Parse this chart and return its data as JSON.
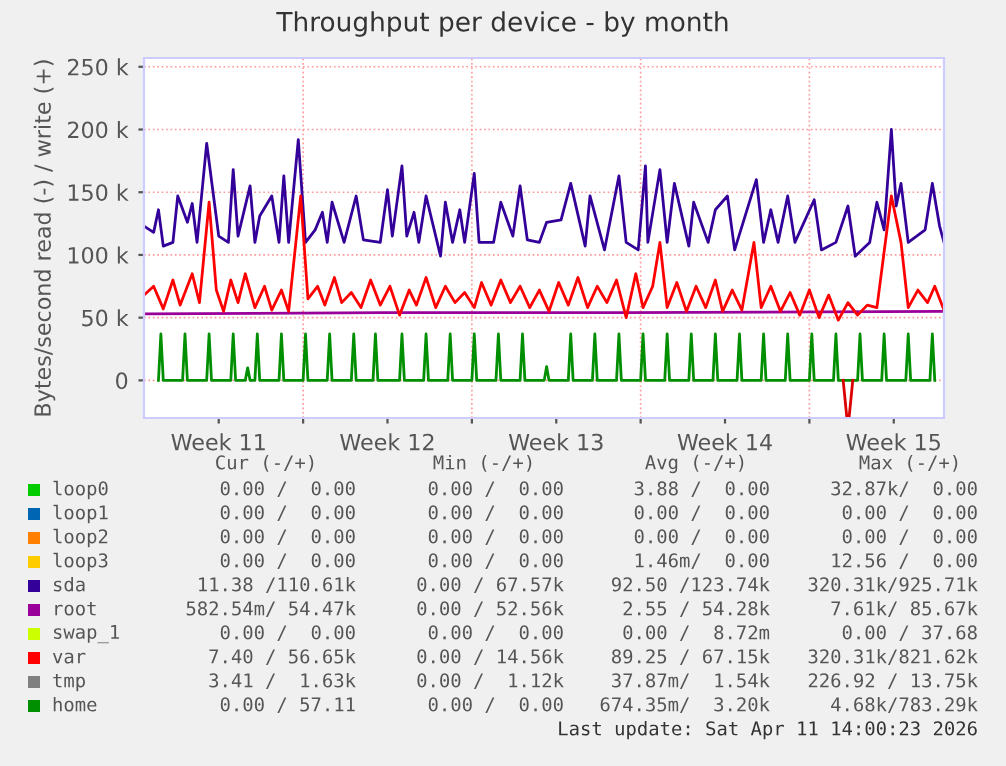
{
  "chart_data": {
    "type": "line",
    "title": "Throughput per device - by month",
    "ylabel": "Bytes/second read (-) / write (+)",
    "xlim": [
      "2026-03-09T09:36",
      "2026-04-11T14:00"
    ],
    "ylim": [
      -30,
      257
    ],
    "xticks": [
      {
        "value": "2026-03-12T12:00",
        "label": "Week 11"
      },
      {
        "value": "2026-03-16T00:00",
        "label": null
      },
      {
        "value": "2026-03-19T12:00",
        "label": "Week 12"
      },
      {
        "value": "2026-03-23T00:00",
        "label": null
      },
      {
        "value": "2026-03-26T12:00",
        "label": "Week 13"
      },
      {
        "value": "2026-03-30T00:00",
        "label": null
      },
      {
        "value": "2026-04-02T12:00",
        "label": "Week 14"
      },
      {
        "value": "2026-04-06T00:00",
        "label": null
      },
      {
        "value": "2026-04-09T12:00",
        "label": "Week 15"
      }
    ],
    "yticks": [
      0,
      {
        "value": 50,
        "label": "50 k"
      },
      {
        "value": 100,
        "label": "100 k"
      },
      {
        "value": 150,
        "label": "150 k"
      },
      {
        "value": 200,
        "label": "200 k"
      },
      {
        "value": 250,
        "label": "250 k"
      }
    ],
    "grid": true,
    "legend": "bottom",
    "marker": "none",
    "line_style": "solid",
    "series": [
      {
        "name": "loop0",
        "color": "#00cc00"
      },
      {
        "name": "loop1",
        "color": "#0066b3"
      },
      {
        "name": "loop2",
        "color": "#ff8000"
      },
      {
        "name": "loop3",
        "color": "#ffcc00"
      },
      {
        "name": "sda",
        "color": "#330099",
        "x": [
          "2026-03-09T09:36",
          "2026-03-09T19:12",
          "2026-03-10T00:00",
          "2026-03-10T04:48",
          "2026-03-10T14:24",
          "2026-03-10T19:12",
          "2026-03-11T04:48",
          "2026-03-11T09:36",
          "2026-03-11T14:24",
          "2026-03-12T00:00",
          "2026-03-12T12:00",
          "2026-03-12T21:36",
          "2026-03-13T02:24",
          "2026-03-13T07:12",
          "2026-03-13T19:12",
          "2026-03-14T00:00",
          "2026-03-14T04:48",
          "2026-03-14T16:48",
          "2026-03-15T00:00",
          "2026-03-15T04:48",
          "2026-03-15T09:36",
          "2026-03-15T19:12",
          "2026-03-16T02:24",
          "2026-03-16T12:00",
          "2026-03-16T19:12",
          "2026-03-17T00:00",
          "2026-03-17T04:48",
          "2026-03-17T16:48",
          "2026-03-18T04:48",
          "2026-03-18T12:00",
          "2026-03-19T04:48",
          "2026-03-19T12:00",
          "2026-03-19T16:48",
          "2026-03-20T02:24",
          "2026-03-20T07:12",
          "2026-03-20T14:24",
          "2026-03-20T19:12",
          "2026-03-21T02:24",
          "2026-03-21T16:48",
          "2026-03-21T21:36",
          "2026-03-22T04:48",
          "2026-03-22T12:00",
          "2026-03-22T16:48",
          "2026-03-23T02:24",
          "2026-03-23T07:12",
          "2026-03-23T21:36",
          "2026-03-24T04:48",
          "2026-03-24T16:48",
          "2026-03-25T00:00",
          "2026-03-25T07:12",
          "2026-03-25T19:12",
          "2026-03-26T02:24",
          "2026-03-26T16:48",
          "2026-03-27T02:24",
          "2026-03-27T16:48",
          "2026-03-27T21:36",
          "2026-03-28T12:00",
          "2026-03-29T02:24",
          "2026-03-29T09:36",
          "2026-03-29T21:36",
          "2026-03-30T04:48",
          "2026-03-30T07:12",
          "2026-03-30T19:12",
          "2026-03-31T02:24",
          "2026-03-31T09:36",
          "2026-04-01T00:00",
          "2026-04-01T04:48",
          "2026-04-01T19:12",
          "2026-04-02T02:24",
          "2026-04-02T14:24",
          "2026-04-02T21:36",
          "2026-04-03T19:12",
          "2026-04-04T02:24",
          "2026-04-04T09:36",
          "2026-04-04T16:48",
          "2026-04-05T02:24",
          "2026-04-05T09:36",
          "2026-04-06T04:48",
          "2026-04-06T12:00",
          "2026-04-07T02:24",
          "2026-04-07T14:24",
          "2026-04-07T21:36",
          "2026-04-08T12:00",
          "2026-04-08T19:12",
          "2026-04-09T02:24",
          "2026-04-09T09:36",
          "2026-04-09T14:24",
          "2026-04-09T19:12",
          "2026-04-10T02:24",
          "2026-04-10T19:12",
          "2026-04-11T02:24",
          "2026-04-11T09:36",
          "2026-04-11T14:00"
        ],
        "values": [
          123,
          118,
          136,
          107,
          110,
          147,
          126,
          141,
          110,
          189,
          115,
          110,
          168,
          115,
          155,
          110,
          131,
          147,
          110,
          163,
          110,
          192,
          110,
          120,
          134,
          110,
          142,
          110,
          147,
          112,
          110,
          152,
          115,
          171,
          115,
          134,
          110,
          147,
          99,
          142,
          110,
          136,
          110,
          165,
          110,
          110,
          142,
          115,
          155,
          112,
          110,
          126,
          128,
          157,
          107,
          147,
          104,
          163,
          110,
          104,
          171,
          110,
          168,
          110,
          157,
          107,
          142,
          110,
          136,
          147,
          104,
          160,
          110,
          136,
          110,
          147,
          110,
          144,
          104,
          110,
          139,
          99,
          110,
          142,
          120,
          200,
          139,
          157,
          110,
          120,
          157,
          123,
          110
        ]
      },
      {
        "name": "root",
        "color": "#990099",
        "x": [
          "2026-03-09T09:36",
          "2026-03-19T09:36",
          "2026-03-29T09:36",
          "2026-04-11T14:00"
        ],
        "values": [
          53,
          54,
          54,
          55
        ]
      },
      {
        "name": "swap_1",
        "color": "#ccff00"
      },
      {
        "name": "var",
        "color": "#ff0000",
        "x": [
          "2026-03-09T09:36",
          "2026-03-09T19:12",
          "2026-03-10T04:48",
          "2026-03-10T14:24",
          "2026-03-10T21:36",
          "2026-03-11T09:36",
          "2026-03-11T16:48",
          "2026-03-12T02:24",
          "2026-03-12T09:36",
          "2026-03-12T16:48",
          "2026-03-13T00:00",
          "2026-03-13T07:12",
          "2026-03-13T14:24",
          "2026-03-14T00:00",
          "2026-03-14T09:36",
          "2026-03-14T16:48",
          "2026-03-15T02:24",
          "2026-03-15T09:36",
          "2026-03-15T21:36",
          "2026-03-16T04:48",
          "2026-03-16T14:24",
          "2026-03-16T21:36",
          "2026-03-17T07:12",
          "2026-03-17T14:24",
          "2026-03-18T00:00",
          "2026-03-18T09:36",
          "2026-03-18T19:12",
          "2026-03-19T04:48",
          "2026-03-19T14:24",
          "2026-03-20T00:00",
          "2026-03-20T09:36",
          "2026-03-20T16:48",
          "2026-03-21T02:24",
          "2026-03-21T12:00",
          "2026-03-21T21:36",
          "2026-03-22T07:12",
          "2026-03-22T16:48",
          "2026-03-23T02:24",
          "2026-03-23T09:36",
          "2026-03-23T19:12",
          "2026-03-24T04:48",
          "2026-03-24T14:24",
          "2026-03-25T00:00",
          "2026-03-25T09:36",
          "2026-03-25T19:12",
          "2026-03-26T04:48",
          "2026-03-26T14:24",
          "2026-03-27T00:00",
          "2026-03-27T09:36",
          "2026-03-27T19:12",
          "2026-03-28T04:48",
          "2026-03-28T14:24",
          "2026-03-29T00:00",
          "2026-03-29T09:36",
          "2026-03-29T19:12",
          "2026-03-30T02:24",
          "2026-03-30T12:00",
          "2026-03-30T19:12",
          "2026-03-31T02:24",
          "2026-03-31T12:00",
          "2026-03-31T21:36",
          "2026-04-01T07:12",
          "2026-04-01T16:48",
          "2026-04-02T02:24",
          "2026-04-02T09:36",
          "2026-04-02T19:12",
          "2026-04-03T04:48",
          "2026-04-03T16:48",
          "2026-04-04T00:00",
          "2026-04-04T09:36",
          "2026-04-04T19:12",
          "2026-04-05T04:48",
          "2026-04-05T14:24",
          "2026-04-06T00:00",
          "2026-04-06T09:36",
          "2026-04-06T19:12",
          "2026-04-07T04:48",
          "2026-04-07T14:24",
          "2026-04-08T00:00",
          "2026-04-08T09:36",
          "2026-04-08T19:12",
          "2026-04-09T09:36",
          "2026-04-09T19:12",
          "2026-04-10T02:24",
          "2026-04-10T12:00",
          "2026-04-10T21:36",
          "2026-04-11T04:48",
          "2026-04-11T14:00"
        ],
        "values": [
          68,
          75,
          57,
          80,
          60,
          85,
          62,
          142,
          72,
          55,
          80,
          62,
          85,
          58,
          75,
          56,
          72,
          55,
          147,
          65,
          75,
          60,
          82,
          62,
          70,
          58,
          80,
          60,
          75,
          52,
          72,
          60,
          82,
          58,
          75,
          62,
          70,
          58,
          78,
          60,
          80,
          62,
          75,
          58,
          72,
          55,
          78,
          60,
          82,
          58,
          75,
          62,
          80,
          50,
          85,
          58,
          75,
          110,
          58,
          78,
          55,
          75,
          58,
          80,
          55,
          72,
          56,
          110,
          58,
          75,
          55,
          70,
          52,
          72,
          50,
          68,
          48,
          62,
          52,
          60,
          58,
          147,
          110,
          58,
          72,
          62,
          75,
          56
        ]
      },
      {
        "name": "tmp",
        "color": "#808080"
      },
      {
        "name": "home",
        "color": "#008f00",
        "x": [
          "2026-03-10T00:00",
          "2026-03-10T02:24",
          "2026-03-10T04:48",
          "2026-03-11T00:00",
          "2026-03-11T02:24",
          "2026-03-11T04:48",
          "2026-03-12T00:00",
          "2026-03-12T02:24",
          "2026-03-12T04:48",
          "2026-03-13T00:00",
          "2026-03-13T02:24",
          "2026-03-13T04:48",
          "2026-03-13T14:24",
          "2026-03-13T16:48",
          "2026-03-13T19:12",
          "2026-03-14T00:00",
          "2026-03-14T02:24",
          "2026-03-14T04:48",
          "2026-03-15T00:00",
          "2026-03-15T02:24",
          "2026-03-15T04:48",
          "2026-03-16T00:00",
          "2026-03-16T02:24",
          "2026-03-16T04:48",
          "2026-03-17T00:00",
          "2026-03-17T02:24",
          "2026-03-17T04:48",
          "2026-03-18T00:00",
          "2026-03-18T02:24",
          "2026-03-18T04:48",
          "2026-03-18T21:36",
          "2026-03-19T00:00",
          "2026-03-19T02:24",
          "2026-03-20T00:00",
          "2026-03-20T02:24",
          "2026-03-20T04:48",
          "2026-03-21T00:00",
          "2026-03-21T02:24",
          "2026-03-21T04:48",
          "2026-03-22T00:00",
          "2026-03-22T02:24",
          "2026-03-22T04:48",
          "2026-03-23T00:00",
          "2026-03-23T02:24",
          "2026-03-23T04:48",
          "2026-03-24T00:00",
          "2026-03-24T02:24",
          "2026-03-24T04:48",
          "2026-03-25T00:00",
          "2026-03-25T02:24",
          "2026-03-25T04:48",
          "2026-03-26T00:00",
          "2026-03-26T02:24",
          "2026-03-26T04:48",
          "2026-03-27T00:00",
          "2026-03-27T02:24",
          "2026-03-27T04:48",
          "2026-03-28T00:00",
          "2026-03-28T02:24",
          "2026-03-28T04:48",
          "2026-03-29T00:00",
          "2026-03-29T02:24",
          "2026-03-29T04:48",
          "2026-03-30T00:00",
          "2026-03-30T02:24",
          "2026-03-30T04:48",
          "2026-03-31T00:00",
          "2026-03-31T02:24",
          "2026-03-31T04:48",
          "2026-04-01T00:00",
          "2026-04-01T02:24",
          "2026-04-01T04:48",
          "2026-04-02T00:00",
          "2026-04-02T02:24",
          "2026-04-02T04:48",
          "2026-04-03T00:00",
          "2026-04-03T02:24",
          "2026-04-03T04:48",
          "2026-04-04T00:00",
          "2026-04-04T02:24",
          "2026-04-04T04:48",
          "2026-04-05T00:00",
          "2026-04-05T02:24",
          "2026-04-05T04:48",
          "2026-04-06T00:00",
          "2026-04-06T02:24",
          "2026-04-06T04:48",
          "2026-04-07T00:00",
          "2026-04-07T02:24",
          "2026-04-07T04:48",
          "2026-04-08T00:00",
          "2026-04-08T02:24",
          "2026-04-08T04:48",
          "2026-04-09T00:00",
          "2026-04-09T02:24",
          "2026-04-09T04:48",
          "2026-04-10T00:00",
          "2026-04-10T02:24",
          "2026-04-10T04:48",
          "2026-04-11T00:00",
          "2026-04-11T02:24",
          "2026-04-11T04:48"
        ],
        "values": [
          0,
          37,
          0,
          0,
          37,
          0,
          0,
          37,
          0,
          0,
          37,
          0,
          0,
          10,
          0,
          0,
          37,
          0,
          0,
          37,
          0,
          0,
          37,
          0,
          0,
          37,
          0,
          0,
          37,
          0,
          0,
          37,
          0,
          0,
          37,
          0,
          0,
          37,
          0,
          0,
          37,
          0,
          0,
          37,
          0,
          0,
          37,
          0,
          0,
          37,
          0,
          0,
          11,
          0,
          0,
          37,
          0,
          0,
          37,
          0,
          0,
          37,
          0,
          0,
          37,
          0,
          0,
          37,
          0,
          0,
          37,
          0,
          0,
          37,
          0,
          0,
          37,
          0,
          0,
          37,
          0,
          0,
          37,
          0,
          0,
          37,
          0,
          0,
          37,
          0,
          0,
          37,
          0,
          0,
          37,
          0,
          0,
          37,
          0,
          0,
          37,
          0
        ]
      },
      {
        "color": "#dd0000",
        "x": [
          "2026-04-07T09:36",
          "2026-04-07T13:12",
          "2026-04-07T15:36",
          "2026-04-07T19:12"
        ],
        "values": [
          0,
          -29,
          -29,
          0
        ]
      }
    ],
    "annotations": [
      "Cur (-/+)",
      "Min (-/+)",
      "Avg (-/+)",
      "Max (-/+)",
      "0.00 /  0.00",
      "0.00 /  0.00",
      "3.88 /  0.00",
      "32.87k/  0.00",
      "0.00 /  0.00",
      "0.00 /  0.00",
      "0.00 /  0.00",
      "0.00 /  0.00",
      "0.00 /  0.00",
      "0.00 /  0.00",
      "0.00 /  0.00",
      "0.00 /  0.00",
      "0.00 /  0.00",
      "0.00 /  0.00",
      "1.46m/  0.00",
      "12.56 /  0.00",
      "11.38 /110.61k",
      "0.00 / 67.57k",
      "92.50 /123.74k",
      "320.31k/925.71k",
      "582.54m/ 54.47k",
      "0.00 / 52.56k",
      "2.55 / 54.28k",
      "7.61k/ 85.67k",
      "0.00 /  0.00",
      "0.00 /  0.00",
      "0.00 /  8.72m",
      "0.00 / 37.68",
      "7.40 / 56.65k",
      "0.00 / 14.56k",
      "89.25 / 67.15k",
      "320.31k/821.62k",
      "3.41 /  1.63k",
      "0.00 /  1.12k",
      "37.87m/  1.54k",
      "226.92 / 13.75k",
      "0.00 / 57.11",
      "0.00 /  0.00",
      "674.35m/  3.20k",
      "4.68k/783.29k",
      "Last update: Sat Apr 11 14:00:23 2026"
    ]
  }
}
